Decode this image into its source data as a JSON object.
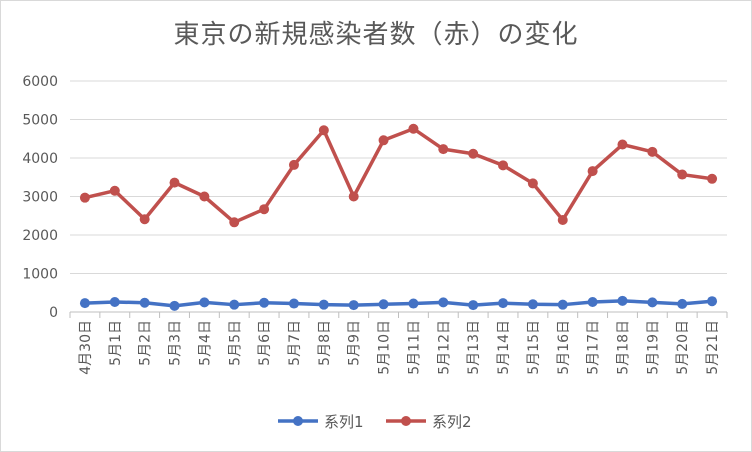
{
  "chart_data": {
    "type": "line",
    "title": "東京の新規感染者数（赤）の変化",
    "xlabel": "",
    "ylabel": "",
    "ylim": [
      0,
      6000
    ],
    "y_ticks": [
      "0",
      "1000",
      "2000",
      "3000",
      "4000",
      "5000",
      "6000"
    ],
    "categories": [
      "4月30日",
      "5月1日",
      "5月2日",
      "5月3日",
      "5月4日",
      "5月5日",
      "5月6日",
      "5月7日",
      "5月8日",
      "5月9日",
      "5月10日",
      "5月11日",
      "5月12日",
      "5月13日",
      "5月14日",
      "5月15日",
      "5月16日",
      "5月17日",
      "5月18日",
      "5月19日",
      "5月20日",
      "5月21日"
    ],
    "series": [
      {
        "name": "系列1",
        "color": "#4472c4",
        "values": [
          230,
          260,
          240,
          160,
          250,
          190,
          240,
          220,
          190,
          180,
          200,
          220,
          250,
          180,
          230,
          200,
          190,
          260,
          290,
          250,
          210,
          280
        ]
      },
      {
        "name": "系列2",
        "color": "#c0504d",
        "values": [
          2970,
          3150,
          2410,
          3360,
          3000,
          2330,
          2670,
          3820,
          4720,
          3000,
          4460,
          4760,
          4230,
          4110,
          3810,
          3340,
          2390,
          3660,
          4350,
          4160,
          3570,
          3460
        ]
      }
    ],
    "grid": true,
    "legend_position": "bottom"
  }
}
